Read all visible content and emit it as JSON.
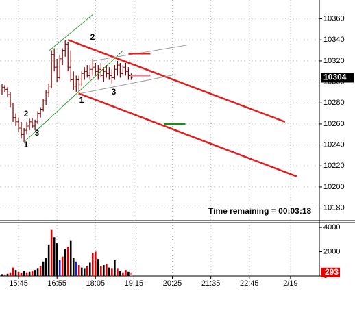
{
  "chart_data": [
    {
      "type": "ohlc",
      "color": "#7a0000",
      "xlim": [
        -0.75,
        115.5
      ],
      "ylim": [
        10168,
        10378
      ],
      "yticks": [
        10180,
        10200,
        10220,
        10240,
        10260,
        10280,
        10300,
        10320,
        10340,
        10360
      ],
      "grid": true,
      "open": [
        10292,
        10295,
        10293,
        10288,
        10278,
        10266,
        10262,
        10256,
        10250,
        10254,
        10258,
        10262,
        10258,
        10262,
        10270,
        10274,
        10282,
        10290,
        10296,
        10326,
        10314,
        10304,
        10322,
        10330,
        10336,
        10314,
        10302,
        10296,
        10302,
        10298,
        10308,
        10310,
        10306,
        10312,
        10314,
        10310,
        10312,
        10306,
        10310,
        10308,
        10306,
        10304,
        10312,
        10316,
        10308,
        10314,
        10310,
        10306
      ],
      "high": [
        10298,
        10297,
        10295,
        10290,
        10280,
        10270,
        10266,
        10262,
        10256,
        10262,
        10265,
        10266,
        10264,
        10272,
        10276,
        10284,
        10292,
        10298,
        10330,
        10332,
        10322,
        10326,
        10332,
        10340,
        10338,
        10330,
        10310,
        10306,
        10306,
        10310,
        10314,
        10316,
        10316,
        10322,
        10318,
        10316,
        10318,
        10314,
        10316,
        10314,
        10312,
        10316,
        10320,
        10318,
        10316,
        10318,
        10314,
        10308
      ],
      "low": [
        10288,
        10290,
        10286,
        10276,
        10262,
        10258,
        10252,
        10246,
        10243,
        10250,
        10254,
        10256,
        10254,
        10260,
        10266,
        10272,
        10278,
        10286,
        10294,
        10310,
        10300,
        10302,
        10316,
        10324,
        10310,
        10300,
        10292,
        10290,
        10288,
        10296,
        10302,
        10304,
        10302,
        10306,
        10306,
        10302,
        10304,
        10300,
        10304,
        10302,
        10298,
        10302,
        10306,
        10304,
        10306,
        10306,
        10302,
        10302
      ],
      "close": [
        10295,
        10293,
        10288,
        10278,
        10266,
        10262,
        10256,
        10250,
        10254,
        10258,
        10262,
        10258,
        10262,
        10270,
        10274,
        10282,
        10290,
        10296,
        10326,
        10314,
        10304,
        10322,
        10330,
        10336,
        10314,
        10302,
        10296,
        10302,
        10298,
        10308,
        10310,
        10306,
        10312,
        10314,
        10310,
        10312,
        10306,
        10310,
        10308,
        10306,
        10304,
        10312,
        10316,
        10308,
        10314,
        10310,
        10306,
        10304
      ],
      "last_price": 10304,
      "trendlines": [
        {
          "color": "#2e9e2e",
          "x": [
            17.25,
            33
          ],
          "y": [
            10330,
            10364
          ]
        },
        {
          "color": "#2e9e2e",
          "x": [
            8.5,
            43.75
          ],
          "y": [
            10244,
            10329
          ]
        },
        {
          "color": "#e41b1b",
          "x": [
            24,
            103
          ],
          "y": [
            10340,
            10262
          ]
        },
        {
          "color": "#e41b1b",
          "x": [
            28,
            107.25
          ],
          "y": [
            10289,
            10210
          ]
        },
        {
          "color": "#999999",
          "x": [
            33,
            67.25
          ],
          "y": [
            10320,
            10335
          ]
        },
        {
          "color": "#999999",
          "x": [
            28.5,
            63.25
          ],
          "y": [
            10289,
            10307
          ]
        },
        {
          "color": "#e41b1b",
          "x": [
            46,
            54
          ],
          "y": [
            10327,
            10327
          ]
        },
        {
          "color": "#f08090",
          "x": [
            46.75,
            54
          ],
          "y": [
            10306,
            10306
          ]
        },
        {
          "color": "#1a8c1a",
          "x": [
            59,
            66.75
          ],
          "y": [
            10260,
            10260
          ]
        }
      ],
      "annotations": [
        "2",
        "1",
        "3",
        "2",
        "1",
        "3"
      ],
      "note": "Time remaining = 00:03:18"
    },
    {
      "type": "bar",
      "xlim": [
        -0.75,
        115.5
      ],
      "ylim": [
        0,
        4400
      ],
      "yticks": [
        0,
        2000,
        4000
      ],
      "xticks": [
        {
          "value": 6,
          "label": "15:45"
        },
        {
          "value": 20,
          "label": "16:55"
        },
        {
          "value": 34,
          "label": "18:05"
        },
        {
          "value": 48,
          "label": "19:15"
        },
        {
          "value": 62,
          "label": "20:25"
        },
        {
          "value": 76,
          "label": "21:35"
        },
        {
          "value": 90,
          "label": "22:45"
        },
        {
          "value": 105,
          "label": "2/19"
        }
      ],
      "grid": true,
      "values": [
        150,
        120,
        180,
        300,
        700,
        500,
        350,
        250,
        400,
        300,
        350,
        450,
        500,
        600,
        800,
        1200,
        1500,
        2600,
        3800,
        3200,
        2700,
        1300,
        1600,
        2200,
        2400,
        2900,
        1500,
        1200,
        900,
        700,
        600,
        800,
        1100,
        1900,
        2000,
        1400,
        800,
        900,
        1000,
        700,
        600,
        1300,
        600,
        400,
        300,
        500,
        350,
        293
      ],
      "colors": [
        "#000000",
        "#e00000",
        "#000000",
        "#e00000",
        "#e00000",
        "#000000",
        "#e00000",
        "#e00000",
        "#000000",
        "#e00000",
        "#000000",
        "#e00000",
        "#000000",
        "#000000",
        "#e00000",
        "#000000",
        "#000000",
        "#000000",
        "#e00000",
        "#000000",
        "#000000",
        "#2020c0",
        "#e00000",
        "#000000",
        "#e00000",
        "#000000",
        "#000000",
        "#2020c0",
        "#e00000",
        "#000000",
        "#000000",
        "#e00000",
        "#000000",
        "#e00000",
        "#e00000",
        "#000000",
        "#e00000",
        "#000000",
        "#e00000",
        "#000000",
        "#e00000",
        "#000000",
        "#e00000",
        "#000000",
        "#e00000",
        "#e00000",
        "#000000",
        "#f08090"
      ],
      "last_value": 293,
      "last_color": "#e00000"
    }
  ]
}
